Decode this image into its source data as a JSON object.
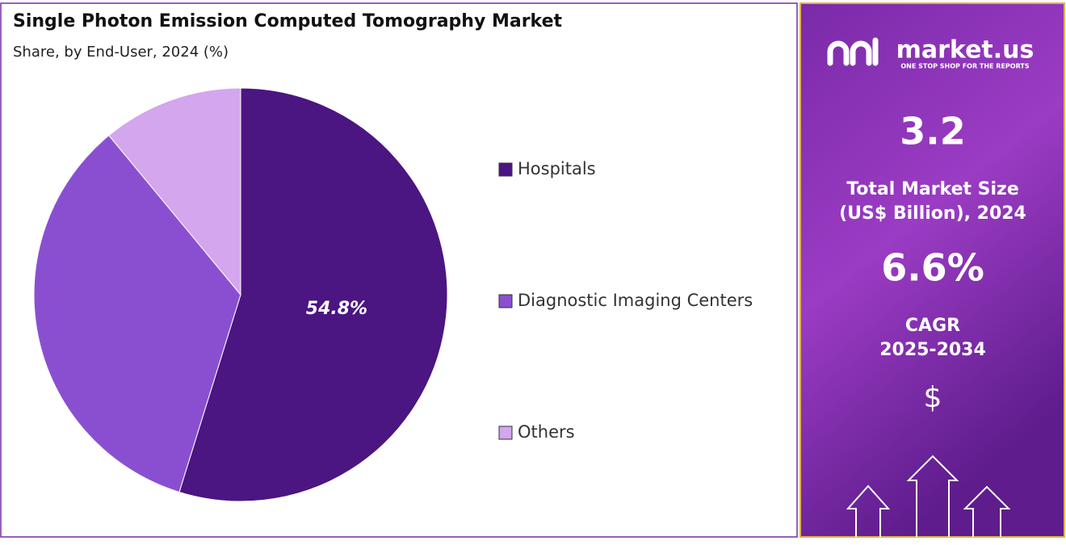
{
  "chart_data": {
    "type": "pie",
    "title": "Single Photon Emission Computed Tomography Market",
    "subtitle": "Share, by End-User, 2024 (%)",
    "categories": [
      "Hospitals",
      "Diagnostic Imaging Centers",
      "Others"
    ],
    "values": [
      54.8,
      34.2,
      11
    ],
    "value_labels": [
      "54.8%",
      null,
      null
    ],
    "colors": [
      "#4b1582",
      "#8a4fd1",
      "#d3a6ee"
    ]
  },
  "side_panel": {
    "logo": "market.us",
    "tagline": "ONE STOP SHOP FOR THE REPORTS",
    "market_size": "3.2",
    "market_size_label": [
      "Total Market Size",
      "(US$ Billion), 2024"
    ],
    "cagr": "6.6%",
    "cagr_label": [
      "CAGR",
      "2025-2034"
    ],
    "currency_symbol": "$"
  }
}
